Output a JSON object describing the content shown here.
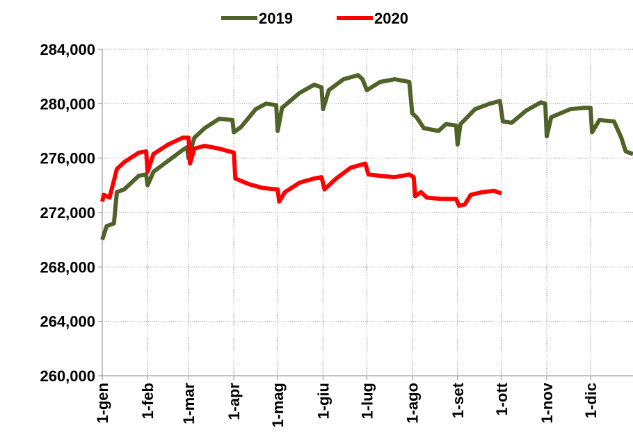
{
  "chart_data": {
    "type": "line",
    "xlim": [
      0,
      363
    ],
    "xticks": [
      {
        "value": 0,
        "label": "1-gen"
      },
      {
        "value": 31,
        "label": "1-feb"
      },
      {
        "value": 59,
        "label": "1-mar"
      },
      {
        "value": 90,
        "label": "1-apr"
      },
      {
        "value": 120,
        "label": "1-mag"
      },
      {
        "value": 151,
        "label": "1-giu"
      },
      {
        "value": 181,
        "label": "1-lug"
      },
      {
        "value": 212,
        "label": "1-ago"
      },
      {
        "value": 243,
        "label": "1-set"
      },
      {
        "value": 273,
        "label": "1-ott"
      },
      {
        "value": 304,
        "label": "1-nov"
      },
      {
        "value": 334,
        "label": "1-dic"
      }
    ],
    "ylim": [
      260000,
      284000
    ],
    "yticks": [
      {
        "value": 260000,
        "label": "260,000"
      },
      {
        "value": 264000,
        "label": "264,000"
      },
      {
        "value": 268000,
        "label": "268,000"
      },
      {
        "value": 272000,
        "label": "272,000"
      },
      {
        "value": 276000,
        "label": "276,000"
      },
      {
        "value": 280000,
        "label": "280,000"
      },
      {
        "value": 284000,
        "label": "284,000"
      }
    ],
    "grid": true,
    "legend": "top",
    "series": [
      {
        "name": "2019",
        "color": "#4f6228",
        "x": [
          0,
          3,
          8,
          10,
          15,
          20,
          25,
          30,
          31,
          35,
          45,
          55,
          58,
          59,
          63,
          70,
          80,
          89,
          90,
          95,
          105,
          112,
          119,
          120,
          123,
          135,
          145,
          150,
          151,
          155,
          165,
          175,
          178,
          181,
          190,
          200,
          210,
          212,
          215,
          220,
          230,
          235,
          242,
          243,
          245,
          255,
          265,
          272,
          274,
          280,
          290,
          300,
          303,
          304,
          307,
          320,
          330,
          334,
          335,
          340,
          350,
          355,
          358,
          363
        ],
        "values": [
          270000,
          271000,
          271200,
          273500,
          273700,
          274200,
          274700,
          274800,
          274000,
          275000,
          275800,
          276600,
          276800,
          276000,
          277500,
          278200,
          278900,
          278800,
          277900,
          278300,
          279600,
          280000,
          279900,
          278000,
          279700,
          280800,
          281400,
          281200,
          279600,
          281000,
          281800,
          282100,
          281800,
          281000,
          281600,
          281800,
          281600,
          279300,
          279000,
          278200,
          278000,
          278500,
          278400,
          277000,
          278500,
          279600,
          280000,
          280200,
          278700,
          278600,
          279500,
          280100,
          280000,
          277600,
          279000,
          279600,
          279700,
          279700,
          277900,
          278800,
          278700,
          277500,
          276500,
          276300
        ]
      },
      {
        "name": "2020",
        "color": "#ff0000",
        "x": [
          0,
          1,
          5,
          10,
          15,
          25,
          30,
          31,
          35,
          45,
          55,
          59,
          60,
          63,
          70,
          80,
          90,
          91,
          100,
          110,
          120,
          121,
          125,
          135,
          145,
          150,
          152,
          160,
          170,
          180,
          182,
          190,
          200,
          210,
          213,
          214,
          218,
          222,
          232,
          242,
          244,
          248,
          252,
          260,
          268,
          273
        ],
        "values": [
          272800,
          273300,
          273100,
          275200,
          275700,
          276400,
          276500,
          275000,
          276300,
          277000,
          277500,
          277500,
          275600,
          276700,
          276900,
          276700,
          276400,
          274500,
          274100,
          273800,
          273700,
          272800,
          273500,
          274200,
          274500,
          274600,
          273700,
          274500,
          275300,
          275600,
          274800,
          274700,
          274600,
          274800,
          274600,
          273200,
          273500,
          273100,
          273000,
          273000,
          272500,
          272600,
          273300,
          273500,
          273600,
          273400
        ]
      }
    ]
  }
}
